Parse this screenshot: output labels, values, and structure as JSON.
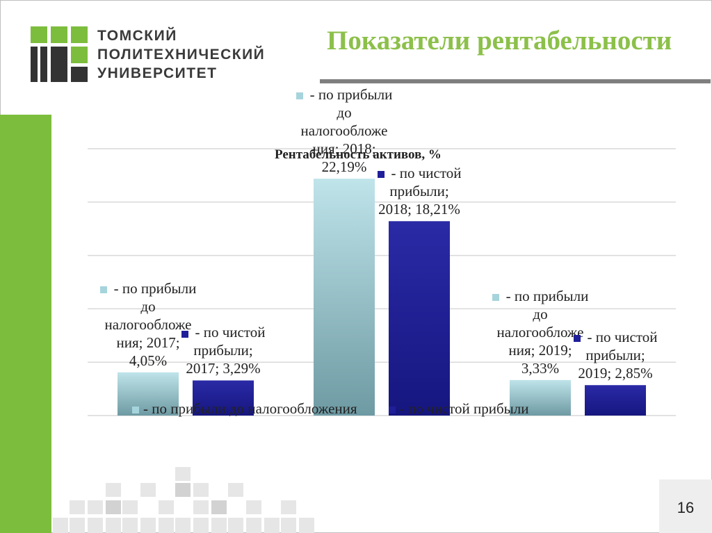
{
  "header": {
    "university_lines": [
      "ТОМСКИЙ",
      "ПОЛИТЕХНИЧЕСКИЙ",
      "УНИВЕРСИТЕТ"
    ],
    "title": "Показатели рентабельности"
  },
  "page_number": "16",
  "colors": {
    "accent_green": "#7dbd3d",
    "title_green": "#8cc04a",
    "series_light": "#a6d4dc",
    "series_dark": "#1f1f9a"
  },
  "chart_data": {
    "type": "bar",
    "title": "Рентабельность активов, %",
    "categories": [
      "2017",
      "2018",
      "2019"
    ],
    "series": [
      {
        "name": "- по прибыли до налогообложения",
        "values": [
          4.05,
          22.19,
          3.33
        ]
      },
      {
        "name": "- по чистой прибыли",
        "values": [
          3.29,
          18.21,
          2.85
        ]
      }
    ],
    "ylim": [
      0,
      25
    ],
    "grid": true,
    "legend_position": "bottom",
    "data_labels": {
      "light": [
        [
          "- по прибыли",
          "до",
          "налогообложе",
          "ния; 2017;",
          "4,05%"
        ],
        [
          "- по прибыли",
          "до",
          "налогообложе",
          "ния; 2018;",
          "22,19%"
        ],
        [
          "- по прибыли",
          "до",
          "налогообложе",
          "ния; 2019;",
          "3,33%"
        ]
      ],
      "dark": [
        [
          "- по чистой",
          "прибыли;",
          "2017; 3,29%"
        ],
        [
          "- по чистой",
          "прибыли;",
          "2018; 18,21%"
        ],
        [
          "- по чистой",
          "прибыли;",
          "2019; 2,85%"
        ]
      ]
    }
  }
}
